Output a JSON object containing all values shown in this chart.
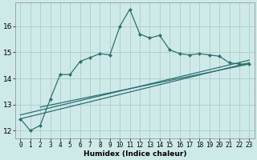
{
  "xlabel": "Humidex (Indice chaleur)",
  "bg_color": "#ceeae8",
  "line_color": "#2d7070",
  "grid_color": "#b0d0ce",
  "xlim": [
    -0.5,
    23.5
  ],
  "ylim": [
    11.7,
    16.9
  ],
  "yticks": [
    12,
    13,
    14,
    15,
    16
  ],
  "xticks": [
    0,
    1,
    2,
    3,
    4,
    5,
    6,
    7,
    8,
    9,
    10,
    11,
    12,
    13,
    14,
    15,
    16,
    17,
    18,
    19,
    20,
    21,
    22,
    23
  ],
  "main_x": [
    0,
    1,
    2,
    3,
    4,
    5,
    6,
    7,
    8,
    9,
    10,
    11,
    12,
    13,
    14,
    15,
    16,
    17,
    18,
    19,
    20,
    21,
    22,
    23
  ],
  "main_y": [
    12.45,
    12.0,
    12.2,
    13.2,
    14.15,
    14.15,
    14.65,
    14.8,
    14.95,
    14.9,
    16.0,
    16.65,
    15.7,
    15.55,
    15.65,
    15.1,
    14.95,
    14.9,
    14.95,
    14.9,
    14.85,
    14.6,
    14.55,
    14.55
  ],
  "line1_x": [
    0,
    23
  ],
  "line1_y": [
    12.45,
    14.6
  ],
  "line2_x": [
    0,
    23
  ],
  "line2_y": [
    12.6,
    14.7
  ],
  "line3_x": [
    2,
    23
  ],
  "line3_y": [
    12.9,
    14.55
  ]
}
